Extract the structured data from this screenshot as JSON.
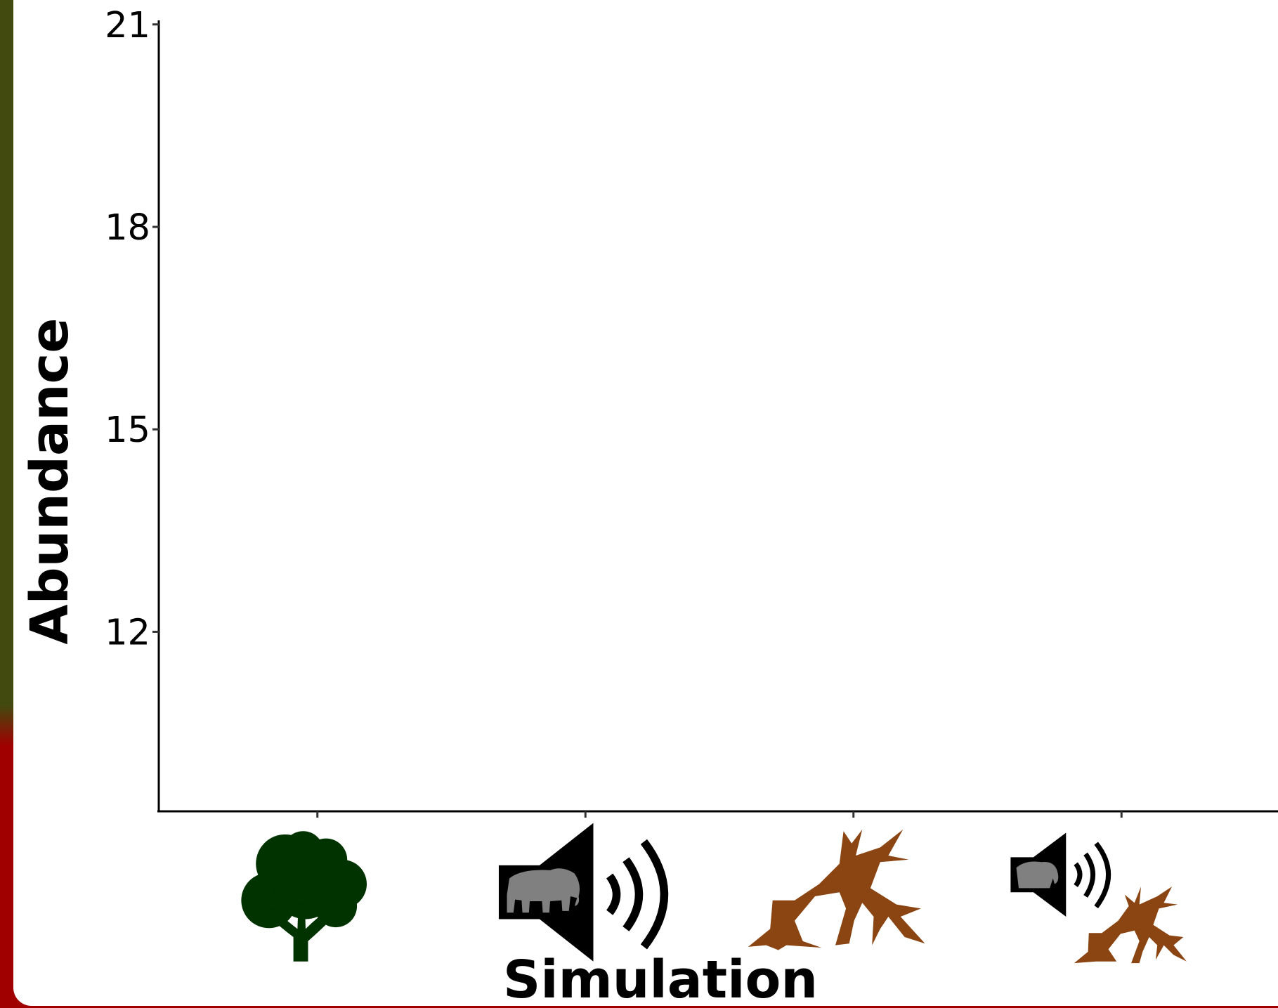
{
  "chart_data": {
    "type": "bar",
    "categories": [
      null,
      null,
      null,
      null
    ],
    "x_label": "Simulation",
    "y_label": "Abundance",
    "ylim": [
      9.34,
      21.06
    ],
    "yticks": [
      12,
      15,
      18,
      21
    ],
    "grid": false
  }
}
